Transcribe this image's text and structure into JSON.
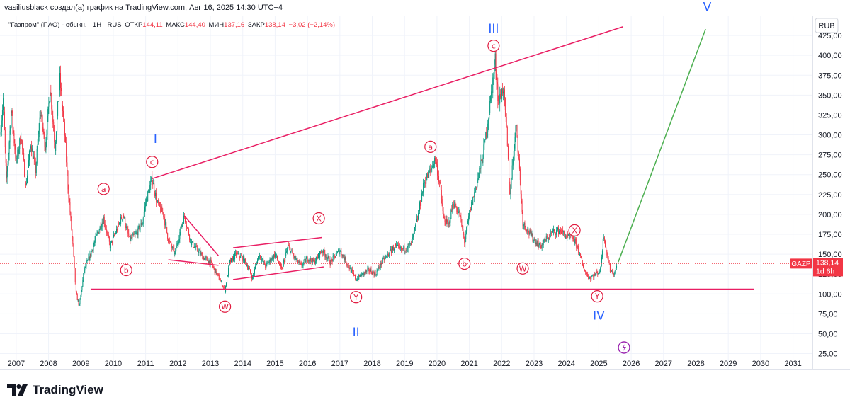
{
  "header": {
    "title": "vasiliusblack создал(а) график на TradingView.com, Авг 16, 2025 14:30 UTC+4"
  },
  "legend": {
    "symbol": "\"Газпром\" (ПАО) - обыкн. · 1Н · RUS",
    "open_label": "ОТКР",
    "open": "144,11",
    "high_label": "МАКС",
    "high": "144,40",
    "low_label": "МИН",
    "low": "137,16",
    "close_label": "ЗАКР",
    "close": "138,14",
    "change": "−3,02 (−2,14%)"
  },
  "currency": "RUB",
  "price_tag": {
    "ticker": "GAZP",
    "price": "138,14",
    "countdown": "1d 6h"
  },
  "brand": {
    "name": "TradingView"
  },
  "colors": {
    "up": "#089981",
    "down": "#f23645",
    "pattern": "#e91e63",
    "wave_major": "#2962ff",
    "wave_minor": "#e11b3f",
    "projection": "#4caf50"
  },
  "chart_data": {
    "type": "candlestick",
    "xlim": [
      2006.5,
      2031.6
    ],
    "ylim": [
      5,
      450
    ],
    "y_ticks": [
      25,
      50,
      75,
      100,
      125,
      150,
      175,
      200,
      225,
      250,
      275,
      300,
      325,
      350,
      375,
      400,
      425
    ],
    "y_tick_labels": [
      "25,00",
      "50,00",
      "75,00",
      "100,00",
      "125,00",
      "150,00",
      "175,00",
      "200,00",
      "225,00",
      "250,00",
      "275,00",
      "300,00",
      "325,00",
      "350,00",
      "375,00",
      "400,00",
      "425,00"
    ],
    "x_ticks": [
      2007,
      2008,
      2009,
      2010,
      2011,
      2012,
      2013,
      2014,
      2015,
      2016,
      2017,
      2018,
      2019,
      2020,
      2021,
      2022,
      2023,
      2024,
      2025,
      2026,
      2027,
      2028,
      2029,
      2030,
      2031
    ],
    "x_tick_labels": [
      "2007",
      "2008",
      "2009",
      "2010",
      "2011",
      "2012",
      "2013",
      "2014",
      "2015",
      "2016",
      "2017",
      "2018",
      "2019",
      "2020",
      "2021",
      "2022",
      "2023",
      "2024",
      "2025",
      "2026",
      "2027",
      "2028",
      "2029",
      "2030",
      "2031"
    ],
    "last_price": 138.14,
    "price_path": [
      [
        2006.5,
        300
      ],
      [
        2006.6,
        345
      ],
      [
        2006.7,
        240
      ],
      [
        2006.85,
        330
      ],
      [
        2007.0,
        265
      ],
      [
        2007.15,
        300
      ],
      [
        2007.3,
        235
      ],
      [
        2007.45,
        290
      ],
      [
        2007.6,
        255
      ],
      [
        2007.75,
        330
      ],
      [
        2007.9,
        285
      ],
      [
        2008.05,
        360
      ],
      [
        2008.2,
        285
      ],
      [
        2008.35,
        370
      ],
      [
        2008.5,
        300
      ],
      [
        2008.6,
        235
      ],
      [
        2008.75,
        160
      ],
      [
        2008.85,
        100
      ],
      [
        2008.95,
        85
      ],
      [
        2009.1,
        130
      ],
      [
        2009.3,
        150
      ],
      [
        2009.5,
        175
      ],
      [
        2009.7,
        195
      ],
      [
        2009.9,
        160
      ],
      [
        2010.1,
        180
      ],
      [
        2010.3,
        200
      ],
      [
        2010.5,
        168
      ],
      [
        2010.7,
        175
      ],
      [
        2010.9,
        190
      ],
      [
        2011.0,
        215
      ],
      [
        2011.2,
        245
      ],
      [
        2011.35,
        215
      ],
      [
        2011.55,
        200
      ],
      [
        2011.7,
        168
      ],
      [
        2011.9,
        150
      ],
      [
        2012.1,
        185
      ],
      [
        2012.2,
        198
      ],
      [
        2012.4,
        165
      ],
      [
        2012.6,
        155
      ],
      [
        2012.8,
        145
      ],
      [
        2013.0,
        140
      ],
      [
        2013.2,
        125
      ],
      [
        2013.45,
        105
      ],
      [
        2013.6,
        140
      ],
      [
        2013.8,
        150
      ],
      [
        2014.0,
        145
      ],
      [
        2014.15,
        135
      ],
      [
        2014.3,
        120
      ],
      [
        2014.5,
        150
      ],
      [
        2014.7,
        135
      ],
      [
        2015.0,
        150
      ],
      [
        2015.2,
        130
      ],
      [
        2015.4,
        160
      ],
      [
        2015.6,
        145
      ],
      [
        2015.8,
        135
      ],
      [
        2016.0,
        145
      ],
      [
        2016.2,
        140
      ],
      [
        2016.45,
        155
      ],
      [
        2016.7,
        140
      ],
      [
        2016.9,
        150
      ],
      [
        2017.0,
        155
      ],
      [
        2017.2,
        140
      ],
      [
        2017.5,
        118
      ],
      [
        2017.7,
        125
      ],
      [
        2017.9,
        130
      ],
      [
        2018.1,
        125
      ],
      [
        2018.3,
        140
      ],
      [
        2018.5,
        150
      ],
      [
        2018.7,
        160
      ],
      [
        2018.9,
        155
      ],
      [
        2019.2,
        162
      ],
      [
        2019.4,
        195
      ],
      [
        2019.6,
        240
      ],
      [
        2019.8,
        255
      ],
      [
        2019.95,
        270
      ],
      [
        2020.1,
        235
      ],
      [
        2020.2,
        195
      ],
      [
        2020.35,
        185
      ],
      [
        2020.5,
        215
      ],
      [
        2020.7,
        200
      ],
      [
        2020.85,
        165
      ],
      [
        2021.0,
        200
      ],
      [
        2021.2,
        235
      ],
      [
        2021.4,
        270
      ],
      [
        2021.55,
        310
      ],
      [
        2021.7,
        360
      ],
      [
        2021.8,
        395
      ],
      [
        2021.9,
        340
      ],
      [
        2022.05,
        360
      ],
      [
        2022.15,
        305
      ],
      [
        2022.25,
        225
      ],
      [
        2022.35,
        270
      ],
      [
        2022.45,
        315
      ],
      [
        2022.55,
        255
      ],
      [
        2022.65,
        190
      ],
      [
        2022.8,
        180
      ],
      [
        2023.0,
        168
      ],
      [
        2023.2,
        160
      ],
      [
        2023.4,
        170
      ],
      [
        2023.6,
        178
      ],
      [
        2023.8,
        180
      ],
      [
        2024.0,
        172
      ],
      [
        2024.2,
        170
      ],
      [
        2024.35,
        158
      ],
      [
        2024.5,
        135
      ],
      [
        2024.7,
        120
      ],
      [
        2024.9,
        125
      ],
      [
        2025.05,
        130
      ],
      [
        2025.15,
        175
      ],
      [
        2025.25,
        150
      ],
      [
        2025.35,
        130
      ],
      [
        2025.5,
        125
      ],
      [
        2025.55,
        138.14
      ]
    ],
    "overlays": [
      {
        "name": "upper-trendline",
        "from": [
          2011.2,
          245
        ],
        "to": [
          2025.75,
          436
        ]
      },
      {
        "name": "base-line",
        "from": [
          2009.3,
          106
        ],
        "to": [
          2029.8,
          106
        ]
      },
      {
        "name": "triangle-upper",
        "from": [
          2012.2,
          198
        ],
        "to": [
          2013.25,
          148
        ]
      },
      {
        "name": "triangle-lower",
        "from": [
          2011.7,
          143
        ],
        "to": [
          2013.25,
          136
        ]
      },
      {
        "name": "channel-upper",
        "from": [
          2013.7,
          158
        ],
        "to": [
          2016.45,
          171
        ]
      },
      {
        "name": "channel-lower",
        "from": [
          2013.7,
          118
        ],
        "to": [
          2016.5,
          134
        ]
      },
      {
        "name": "projection",
        "from": [
          2025.6,
          140
        ],
        "to": [
          2028.3,
          433
        ]
      }
    ],
    "wave_labels": [
      {
        "text": "I",
        "level": "major",
        "x": 2011.3,
        "y": 295
      },
      {
        "text": "II",
        "level": "major",
        "x": 2017.5,
        "y": 52
      },
      {
        "text": "III",
        "level": "major",
        "x": 2021.75,
        "y": 434
      },
      {
        "text": "IV",
        "level": "major",
        "x": 2025.0,
        "y": 73
      },
      {
        "text": "V",
        "level": "major",
        "x": 2028.35,
        "y": 461
      },
      {
        "text": "a",
        "level": "minor",
        "x": 2009.7,
        "y": 232
      },
      {
        "text": "b",
        "level": "minor",
        "x": 2010.4,
        "y": 130
      },
      {
        "text": "c",
        "level": "minor",
        "x": 2011.2,
        "y": 266
      },
      {
        "text": "W",
        "level": "minor",
        "x": 2013.45,
        "y": 84
      },
      {
        "text": "X",
        "level": "minor",
        "x": 2016.35,
        "y": 195
      },
      {
        "text": "Y",
        "level": "minor",
        "x": 2017.5,
        "y": 96
      },
      {
        "text": "a",
        "level": "minor",
        "x": 2019.8,
        "y": 285
      },
      {
        "text": "b",
        "level": "minor",
        "x": 2020.85,
        "y": 138
      },
      {
        "text": "c",
        "level": "minor",
        "x": 2021.75,
        "y": 412
      },
      {
        "text": "W",
        "level": "minor",
        "x": 2022.65,
        "y": 132
      },
      {
        "text": "X",
        "level": "minor",
        "x": 2024.25,
        "y": 180
      },
      {
        "text": "Y",
        "level": "minor",
        "x": 2024.95,
        "y": 97
      }
    ]
  }
}
